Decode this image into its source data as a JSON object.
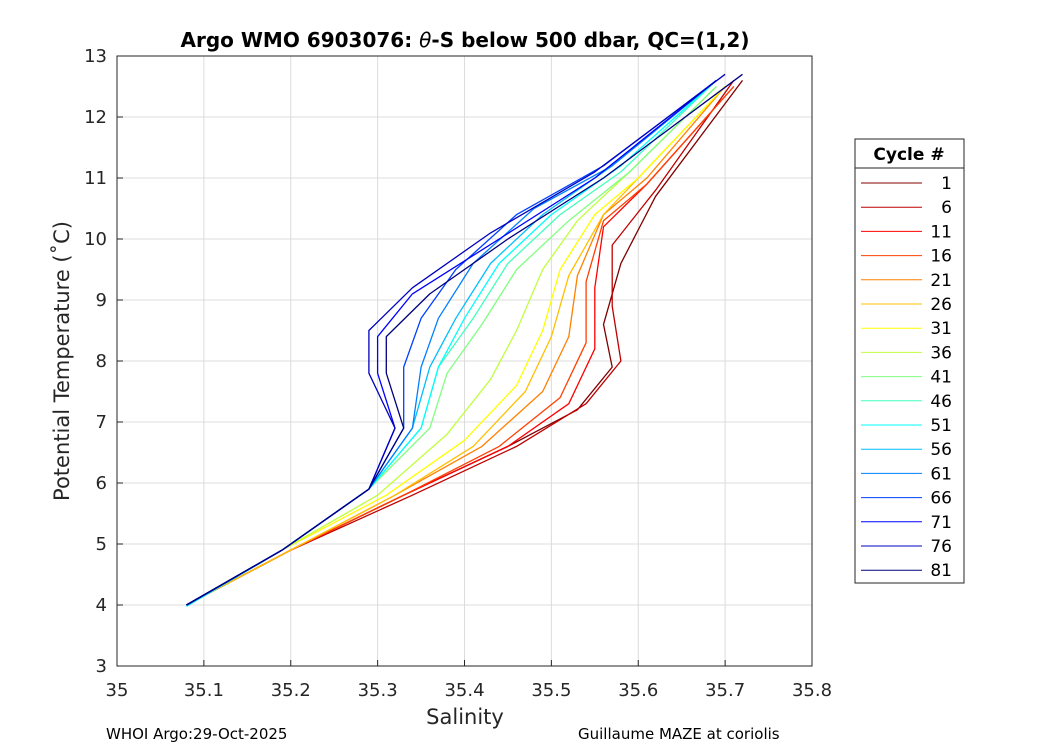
{
  "chart_data": {
    "type": "line",
    "title_parts": [
      "Argo WMO 6903076: ",
      "θ",
      "-S below 500 dbar,  QC=(1,2)"
    ],
    "xlabel": "Salinity",
    "ylabel": "Potential Temperature (˚C)",
    "xlim": [
      35,
      35.8
    ],
    "ylim": [
      3,
      13
    ],
    "xticks": [
      35,
      35.1,
      35.2,
      35.3,
      35.4,
      35.5,
      35.6,
      35.7,
      35.8
    ],
    "xtick_labels": [
      "35",
      "35.1",
      "35.2",
      "35.3",
      "35.4",
      "35.5",
      "35.6",
      "35.7",
      "35.8"
    ],
    "yticks": [
      3,
      4,
      5,
      6,
      7,
      8,
      9,
      10,
      11,
      12,
      13
    ],
    "ytick_labels": [
      "3",
      "4",
      "5",
      "6",
      "7",
      "8",
      "9",
      "10",
      "11",
      "12",
      "13"
    ],
    "grid": true,
    "legend_title": "Cycle #",
    "legend_position": "right",
    "series": [
      {
        "name": "1",
        "color": "#800000",
        "x": [
          35.08,
          35.2,
          35.33,
          35.45,
          35.53,
          35.57,
          35.56,
          35.58,
          35.62,
          35.72
        ],
        "y": [
          4.0,
          4.9,
          5.8,
          6.6,
          7.2,
          7.9,
          8.6,
          9.6,
          10.7,
          12.6
        ]
      },
      {
        "name": "6",
        "color": "#C00000",
        "x": [
          35.08,
          35.2,
          35.34,
          35.46,
          35.54,
          35.58,
          35.57,
          35.57,
          35.62,
          35.71
        ],
        "y": [
          4.0,
          4.9,
          5.8,
          6.6,
          7.3,
          8.0,
          8.9,
          9.9,
          10.8,
          12.6
        ]
      },
      {
        "name": "11",
        "color": "#FF0000",
        "x": [
          35.08,
          35.2,
          35.33,
          35.45,
          35.52,
          35.55,
          35.55,
          35.56,
          35.61,
          35.71
        ],
        "y": [
          4.0,
          4.9,
          5.8,
          6.6,
          7.3,
          8.2,
          9.2,
          10.2,
          10.9,
          12.5
        ]
      },
      {
        "name": "16",
        "color": "#FF4000",
        "x": [
          35.08,
          35.2,
          35.33,
          35.44,
          35.51,
          35.54,
          35.54,
          35.56,
          35.61,
          35.71
        ],
        "y": [
          4.0,
          4.9,
          5.8,
          6.6,
          7.4,
          8.3,
          9.3,
          10.3,
          10.9,
          12.5
        ]
      },
      {
        "name": "21",
        "color": "#FF8000",
        "x": [
          35.08,
          35.2,
          35.32,
          35.42,
          35.49,
          35.52,
          35.53,
          35.56,
          35.61,
          35.7
        ],
        "y": [
          4.0,
          4.9,
          5.8,
          6.6,
          7.5,
          8.4,
          9.4,
          10.4,
          11.0,
          12.5
        ]
      },
      {
        "name": "26",
        "color": "#FFBF00",
        "x": [
          35.08,
          35.2,
          35.32,
          35.41,
          35.47,
          35.5,
          35.52,
          35.56,
          35.6,
          35.7
        ],
        "y": [
          4.0,
          4.9,
          5.8,
          6.6,
          7.5,
          8.4,
          9.4,
          10.4,
          11.0,
          12.5
        ]
      },
      {
        "name": "31",
        "color": "#FFFF00",
        "x": [
          35.08,
          35.19,
          35.31,
          35.4,
          35.46,
          35.49,
          35.51,
          35.55,
          35.6,
          35.7
        ],
        "y": [
          4.0,
          4.9,
          5.8,
          6.7,
          7.6,
          8.5,
          9.5,
          10.4,
          11.0,
          12.5
        ]
      },
      {
        "name": "36",
        "color": "#BFFF40",
        "x": [
          35.08,
          35.19,
          35.3,
          35.38,
          35.43,
          35.46,
          35.49,
          35.53,
          35.59,
          35.69
        ],
        "y": [
          4.0,
          4.9,
          5.8,
          6.8,
          7.7,
          8.5,
          9.5,
          10.3,
          11.1,
          12.5
        ]
      },
      {
        "name": "41",
        "color": "#80FF80",
        "x": [
          35.08,
          35.19,
          35.29,
          35.36,
          35.38,
          35.42,
          35.46,
          35.52,
          35.59,
          35.69
        ],
        "y": [
          3.98,
          4.9,
          5.9,
          6.9,
          7.8,
          8.6,
          9.5,
          10.3,
          11.1,
          12.5
        ]
      },
      {
        "name": "46",
        "color": "#40FFBF",
        "x": [
          35.08,
          35.19,
          35.29,
          35.35,
          35.37,
          35.41,
          35.45,
          35.51,
          35.58,
          35.69
        ],
        "y": [
          3.98,
          4.9,
          5.9,
          6.9,
          7.9,
          8.7,
          9.6,
          10.4,
          11.1,
          12.6
        ]
      },
      {
        "name": "51",
        "color": "#00FFFF",
        "x": [
          35.08,
          35.19,
          35.29,
          35.35,
          35.37,
          35.4,
          35.44,
          35.5,
          35.58,
          35.69
        ],
        "y": [
          3.98,
          4.9,
          5.9,
          6.9,
          7.9,
          8.7,
          9.6,
          10.4,
          11.2,
          12.6
        ]
      },
      {
        "name": "56",
        "color": "#00BFFF",
        "x": [
          35.08,
          35.19,
          35.29,
          35.34,
          35.36,
          35.39,
          35.43,
          35.49,
          35.57,
          35.69
        ],
        "y": [
          3.99,
          4.9,
          5.9,
          6.9,
          7.9,
          8.7,
          9.6,
          10.4,
          11.2,
          12.6
        ]
      },
      {
        "name": "61",
        "color": "#0080FF",
        "x": [
          35.08,
          35.19,
          35.29,
          35.34,
          35.35,
          35.37,
          35.41,
          35.48,
          35.57,
          35.69
        ],
        "y": [
          4.0,
          4.9,
          5.9,
          6.9,
          7.9,
          8.7,
          9.6,
          10.5,
          11.2,
          12.6
        ]
      },
      {
        "name": "66",
        "color": "#0040FF",
        "x": [
          35.08,
          35.19,
          35.29,
          35.33,
          35.33,
          35.35,
          35.39,
          35.46,
          35.56,
          35.69
        ],
        "y": [
          4.0,
          4.9,
          5.9,
          6.9,
          7.9,
          8.7,
          9.5,
          10.4,
          11.2,
          12.6
        ]
      },
      {
        "name": "71",
        "color": "#0000FF",
        "x": [
          35.08,
          35.19,
          35.29,
          35.32,
          35.3,
          35.3,
          35.34,
          35.44,
          35.55,
          35.69
        ],
        "y": [
          4.0,
          4.9,
          5.9,
          6.9,
          7.8,
          8.4,
          9.1,
          10.0,
          11.0,
          12.6
        ]
      },
      {
        "name": "76",
        "color": "#0000C0",
        "x": [
          35.08,
          35.19,
          35.29,
          35.32,
          35.29,
          35.29,
          35.34,
          35.43,
          35.55,
          35.7
        ],
        "y": [
          4.0,
          4.9,
          5.9,
          6.9,
          7.8,
          8.5,
          9.2,
          10.1,
          11.1,
          12.7
        ]
      },
      {
        "name": "81",
        "color": "#000080",
        "x": [
          35.08,
          35.19,
          35.29,
          35.33,
          35.31,
          35.31,
          35.36,
          35.45,
          35.56,
          35.72
        ],
        "y": [
          4.0,
          4.9,
          5.9,
          6.9,
          7.8,
          8.4,
          9.1,
          10.0,
          11.0,
          12.7
        ]
      }
    ]
  },
  "footer": {
    "left": "WHOI Argo:29-Oct-2025",
    "right": "Guillaume MAZE at coriolis"
  }
}
